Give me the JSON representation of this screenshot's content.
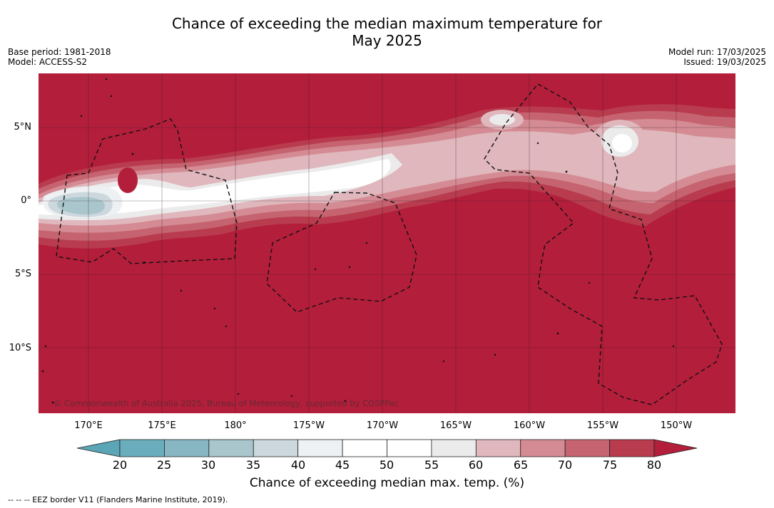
{
  "title_line1": "Chance of exceeding the median maximum temperature for",
  "title_line2": "May 2025",
  "meta_left": {
    "base_period": "Base period: 1981-2018",
    "model": "Model: ACCESS-S2"
  },
  "meta_right": {
    "model_run": "Model run: 17/03/2025",
    "issued": "Issued: 19/03/2025"
  },
  "lat_labels": [
    "5°N",
    "0°",
    "5°S",
    "10°S"
  ],
  "lon_labels": [
    "170°E",
    "175°E",
    "180°",
    "175°W",
    "170°W",
    "165°W",
    "160°W",
    "155°W",
    "150°W"
  ],
  "copyright": "© Commonwealth of Australia 2025, Bureau of Meteorology, supported by COSPPac",
  "colorbar": {
    "label": "Chance of exceeding median max. temp. (%)",
    "ticks": [
      "20",
      "25",
      "30",
      "35",
      "40",
      "45",
      "50",
      "55",
      "60",
      "65",
      "70",
      "75",
      "80"
    ],
    "colors": [
      "#5aa6b6",
      "#6aaebd",
      "#86b7c3",
      "#a9c6cc",
      "#ccd8dd",
      "#eef1f3",
      "#ffffff",
      "#ffffff",
      "#ecebeb",
      "#dfb7bd",
      "#d48b93",
      "#c56470",
      "#b83b4e",
      "#b31e3b"
    ]
  },
  "footnote": "--  --  -- EEZ border V11 (Flanders Marine Institute, 2019)."
}
